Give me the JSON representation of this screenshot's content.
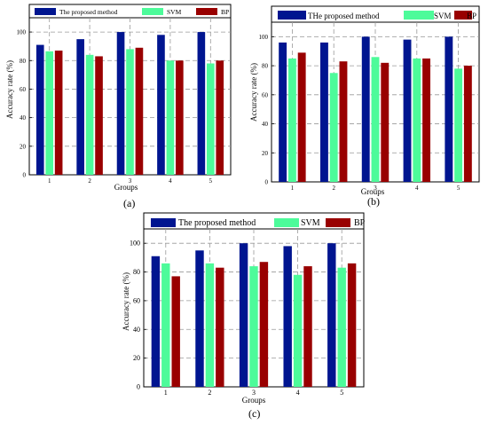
{
  "chart_data": [
    {
      "panel": "(a)",
      "type": "bar",
      "categories": [
        "1",
        "2",
        "3",
        "4",
        "5"
      ],
      "series": [
        {
          "name": "The proposed method",
          "color": "#001590",
          "values": [
            91,
            95,
            100,
            98,
            100
          ]
        },
        {
          "name": "SVM",
          "color": "#4dfb9a",
          "values": [
            86.5,
            84,
            88,
            80,
            78
          ]
        },
        {
          "name": "BP",
          "color": "#990000",
          "values": [
            87,
            83,
            89,
            80,
            80
          ]
        }
      ],
      "xlabel": "Groups",
      "ylabel": "Accuracy rate (%)",
      "ylim": [
        0,
        110
      ],
      "yticks": [
        0,
        20,
        40,
        60,
        80,
        100
      ],
      "grid": true,
      "legend": "top"
    },
    {
      "panel": "(b)",
      "type": "bar",
      "categories": [
        "1",
        "2",
        "3",
        "4",
        "5"
      ],
      "series": [
        {
          "name": "THe proposed method",
          "color": "#001590",
          "values": [
            96,
            96,
            100,
            98,
            100
          ]
        },
        {
          "name": "SVM",
          "color": "#4dfb9a",
          "values": [
            85,
            75,
            86,
            85,
            78
          ]
        },
        {
          "name": "BP",
          "color": "#990000",
          "values": [
            89,
            83,
            82,
            85,
            80
          ]
        }
      ],
      "xlabel": "Groups",
      "ylabel": "Accuracy rate (%)",
      "ylim": [
        0,
        110
      ],
      "yticks": [
        0,
        20,
        40,
        60,
        80,
        100
      ],
      "grid": true,
      "legend": "top"
    },
    {
      "panel": "(c)",
      "type": "bar",
      "categories": [
        "1",
        "2",
        "3",
        "4",
        "5"
      ],
      "series": [
        {
          "name": "The proposed method",
          "color": "#001590",
          "values": [
            91,
            95,
            100,
            98,
            100
          ]
        },
        {
          "name": "SVM",
          "color": "#4dfb9a",
          "values": [
            86,
            86,
            84,
            78,
            83
          ]
        },
        {
          "name": "BP",
          "color": "#990000",
          "values": [
            77,
            83,
            87,
            84,
            86
          ]
        }
      ],
      "xlabel": "Groups",
      "ylabel": "Accuracy rate (%)",
      "ylim": [
        0,
        110
      ],
      "yticks": [
        0,
        20,
        40,
        60,
        80,
        100
      ],
      "grid": true,
      "legend": "top"
    }
  ]
}
